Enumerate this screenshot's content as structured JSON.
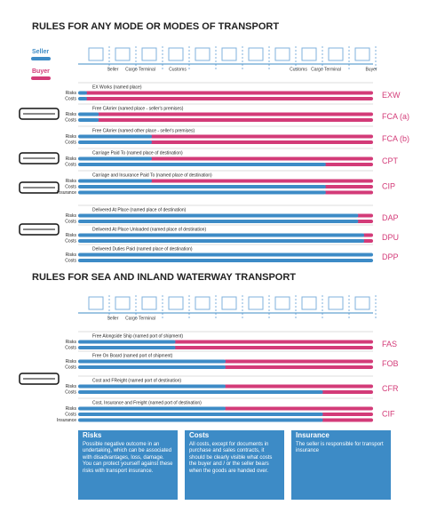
{
  "legend": {
    "seller": "Seller",
    "buyer": "Buyer"
  },
  "sections": [
    {
      "title": "RULES FOR ANY MODE OR MODES OF TRANSPORT",
      "stages": [
        "Seller",
        "Cargo Terminal",
        "Customs",
        "Customs",
        "Cargo Terminal",
        "Buyer"
      ],
      "rules": [
        {
          "name": "EX Works (named place)",
          "code": "EXW",
          "rows": [
            "Risks",
            "Costs"
          ]
        },
        {
          "name": "Free CArrier (named place - seller's premises)",
          "code": "FCA (a)",
          "rows": [
            "Risks",
            "Costs"
          ]
        },
        {
          "name": "Free CArrier (named other place - seller's premises)",
          "code": "FCA (b)",
          "rows": [
            "Risks",
            "Costs"
          ]
        },
        {
          "name": "Carriage Paid To (named place of destination)",
          "code": "CPT",
          "rows": [
            "Risks",
            "Costs"
          ]
        },
        {
          "name": "Carriage and Insurance Paid To (named place of destination)",
          "code": "CIP",
          "rows": [
            "Risks",
            "Costs",
            "Insurance"
          ]
        },
        {
          "name": "Delivered At Place (named place of destination)",
          "code": "DAP",
          "rows": [
            "Risks",
            "Costs"
          ]
        },
        {
          "name": "Delivered At Place Unloaded (named place of destination)",
          "code": "DPU",
          "rows": [
            "Risks",
            "Costs"
          ]
        },
        {
          "name": "Delivered Duties Paid (named place of destination)",
          "code": "DPP",
          "rows": [
            "Risks",
            "Costs"
          ]
        }
      ]
    },
    {
      "title": "RULES FOR SEA AND INLAND WATERWAY TRANSPORT",
      "stages": [
        "Seller",
        "Cargo Terminal"
      ],
      "rules": [
        {
          "name": "Free Alongside Ship (named port of shipment)",
          "code": "FAS",
          "rows": [
            "Risks",
            "Costs"
          ]
        },
        {
          "name": "Free On Board (named port of shipment)",
          "code": "FOB",
          "rows": [
            "Risks",
            "Costs"
          ]
        },
        {
          "name": "Cost and FReight (named port of destination)",
          "code": "CFR",
          "rows": [
            "Risks",
            "Costs"
          ]
        },
        {
          "name": "Cost, Insurance and Freight (named port of destination)",
          "code": "CIF",
          "rows": [
            "Risks",
            "Costs",
            "Insurance"
          ]
        }
      ]
    }
  ],
  "definitions": [
    {
      "title": "Risks",
      "text": "Possible negative outcome in an undertaking, which can be associated with disadvantages, loss, damage. You can protect yourself against these risks with transport insurance."
    },
    {
      "title": "Costs",
      "text": "All costs, except for documents in purchase and sales contracts, it should be clearly visible what costs the buyer and / or the seller bears when the goods are handed over."
    },
    {
      "title": "Insurance",
      "text": "The seller is responsible for transport insurance"
    }
  ]
}
